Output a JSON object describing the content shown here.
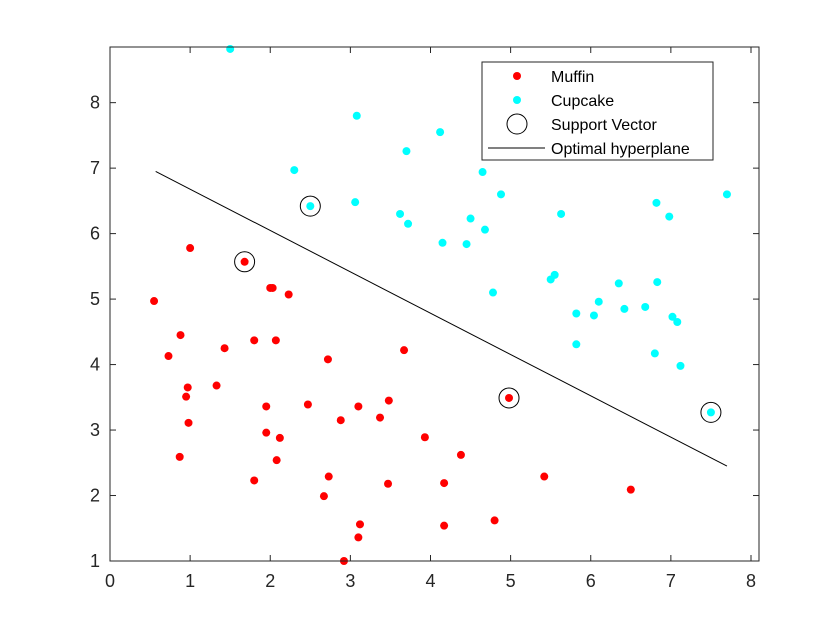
{
  "chart_data": {
    "type": "scatter",
    "title": "",
    "xlabel": "",
    "ylabel": "",
    "xlim": [
      0,
      8.1
    ],
    "ylim": [
      1,
      8.85
    ],
    "xticks": [
      "0",
      "1",
      "2",
      "3",
      "4",
      "5",
      "6",
      "7",
      "8"
    ],
    "yticks": [
      "1",
      "2",
      "3",
      "4",
      "5",
      "6",
      "7",
      "8"
    ],
    "grid": false,
    "legend_position": "top-right",
    "legend": [
      {
        "label": "Muffin",
        "kind": "marker",
        "color": "#ff0000"
      },
      {
        "label": "Cupcake",
        "kind": "marker",
        "color": "#00ffff"
      },
      {
        "label": "Support Vector",
        "kind": "circle",
        "color": "#000000"
      },
      {
        "label": "Optimal hyperplane",
        "kind": "line",
        "color": "#000000"
      }
    ],
    "series": [
      {
        "name": "Muffin",
        "color": "#ff0000",
        "points": [
          [
            0.55,
            4.97
          ],
          [
            1.0,
            5.78
          ],
          [
            1.68,
            5.57
          ],
          [
            2.0,
            5.17
          ],
          [
            2.03,
            5.17
          ],
          [
            2.23,
            5.07
          ],
          [
            0.88,
            4.45
          ],
          [
            0.73,
            4.13
          ],
          [
            1.43,
            4.25
          ],
          [
            1.8,
            4.37
          ],
          [
            2.07,
            4.37
          ],
          [
            3.67,
            4.22
          ],
          [
            2.72,
            4.08
          ],
          [
            0.97,
            3.65
          ],
          [
            1.33,
            3.68
          ],
          [
            0.95,
            3.51
          ],
          [
            2.47,
            3.39
          ],
          [
            1.95,
            3.36
          ],
          [
            3.1,
            3.36
          ],
          [
            3.48,
            3.45
          ],
          [
            0.98,
            3.11
          ],
          [
            2.88,
            3.15
          ],
          [
            3.37,
            3.19
          ],
          [
            1.95,
            2.96
          ],
          [
            2.12,
            2.88
          ],
          [
            3.93,
            2.89
          ],
          [
            4.98,
            3.49
          ],
          [
            0.87,
            2.59
          ],
          [
            2.08,
            2.54
          ],
          [
            4.38,
            2.62
          ],
          [
            1.8,
            2.23
          ],
          [
            2.73,
            2.29
          ],
          [
            3.47,
            2.18
          ],
          [
            4.17,
            2.19
          ],
          [
            5.42,
            2.29
          ],
          [
            6.5,
            2.09
          ],
          [
            2.67,
            1.99
          ],
          [
            3.12,
            1.56
          ],
          [
            4.17,
            1.54
          ],
          [
            4.8,
            1.62
          ],
          [
            3.1,
            1.36
          ],
          [
            2.92,
            1.0
          ]
        ]
      },
      {
        "name": "Cupcake",
        "color": "#00ffff",
        "points": [
          [
            1.5,
            8.82
          ],
          [
            3.08,
            7.8
          ],
          [
            4.12,
            7.55
          ],
          [
            3.7,
            7.26
          ],
          [
            2.3,
            6.97
          ],
          [
            4.65,
            6.94
          ],
          [
            4.88,
            6.6
          ],
          [
            7.7,
            6.6
          ],
          [
            3.06,
            6.48
          ],
          [
            2.5,
            6.42
          ],
          [
            6.82,
            6.47
          ],
          [
            3.62,
            6.3
          ],
          [
            5.63,
            6.3
          ],
          [
            6.98,
            6.26
          ],
          [
            4.5,
            6.23
          ],
          [
            3.72,
            6.15
          ],
          [
            4.68,
            6.06
          ],
          [
            4.15,
            5.86
          ],
          [
            4.45,
            5.84
          ],
          [
            5.55,
            5.37
          ],
          [
            5.5,
            5.3
          ],
          [
            6.35,
            5.24
          ],
          [
            6.83,
            5.26
          ],
          [
            4.78,
            5.1
          ],
          [
            6.1,
            4.96
          ],
          [
            6.68,
            4.88
          ],
          [
            6.42,
            4.85
          ],
          [
            5.82,
            4.78
          ],
          [
            6.04,
            4.75
          ],
          [
            7.02,
            4.73
          ],
          [
            7.08,
            4.65
          ],
          [
            5.82,
            4.31
          ],
          [
            6.8,
            4.17
          ],
          [
            7.12,
            3.98
          ],
          [
            7.5,
            3.27
          ]
        ]
      }
    ],
    "support_vectors": [
      [
        1.68,
        5.57
      ],
      [
        2.5,
        6.42
      ],
      [
        4.98,
        3.49
      ],
      [
        7.5,
        3.27
      ]
    ],
    "hyperplane": {
      "x": [
        0.57,
        7.7
      ],
      "y": [
        6.95,
        2.45
      ]
    }
  }
}
